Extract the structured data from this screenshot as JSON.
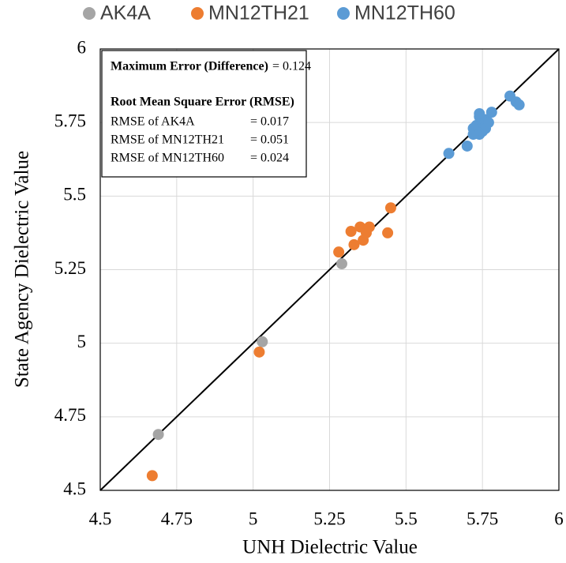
{
  "chart_data": {
    "type": "scatter",
    "x_label": "UNH Dielectric Value",
    "y_label": "State Agency Dielectric Value",
    "xlim": [
      4.5,
      6
    ],
    "ylim": [
      4.5,
      6
    ],
    "xticks": [
      4.5,
      4.75,
      5,
      5.25,
      5.5,
      5.75,
      6
    ],
    "yticks": [
      4.5,
      4.75,
      5,
      5.25,
      5.5,
      5.75,
      6
    ],
    "grid": true,
    "legend": "top",
    "annotations": [
      {
        "label": "Maximum Error (Difference)",
        "value": "= 0.124"
      },
      {
        "label": "Root Mean Square Error (RMSE)"
      },
      {
        "label": "RMSE of AK4A",
        "value": "= 0.017"
      },
      {
        "label": "RMSE of MN12TH21",
        "value": "= 0.051"
      },
      {
        "label": "RMSE of MN12TH60",
        "value": "= 0.024"
      }
    ],
    "series": [
      {
        "name": "AK4A",
        "color": "#a5a5a5",
        "x": [
          4.69,
          5.03,
          5.29
        ],
        "values": [
          4.69,
          5.005,
          5.27
        ]
      },
      {
        "name": "MN12TH21",
        "color": "#ed7d31",
        "x": [
          4.67,
          5.02,
          5.28,
          5.32,
          5.33,
          5.35,
          5.36,
          5.37,
          5.38,
          5.44,
          5.45
        ],
        "values": [
          4.55,
          4.97,
          5.31,
          5.38,
          5.335,
          5.395,
          5.35,
          5.375,
          5.395,
          5.375,
          5.46
        ]
      },
      {
        "name": "MN12TH60",
        "color": "#5b9bd5",
        "x": [
          5.64,
          5.7,
          5.72,
          5.72,
          5.73,
          5.73,
          5.74,
          5.74,
          5.75,
          5.75,
          5.75,
          5.76,
          5.76,
          5.76,
          5.77,
          5.74,
          5.78,
          5.84,
          5.86,
          5.87
        ],
        "values": [
          5.645,
          5.67,
          5.71,
          5.73,
          5.72,
          5.74,
          5.71,
          5.77,
          5.72,
          5.75,
          5.76,
          5.73,
          5.74,
          5.76,
          5.75,
          5.78,
          5.785,
          5.84,
          5.82,
          5.81
        ]
      }
    ]
  }
}
